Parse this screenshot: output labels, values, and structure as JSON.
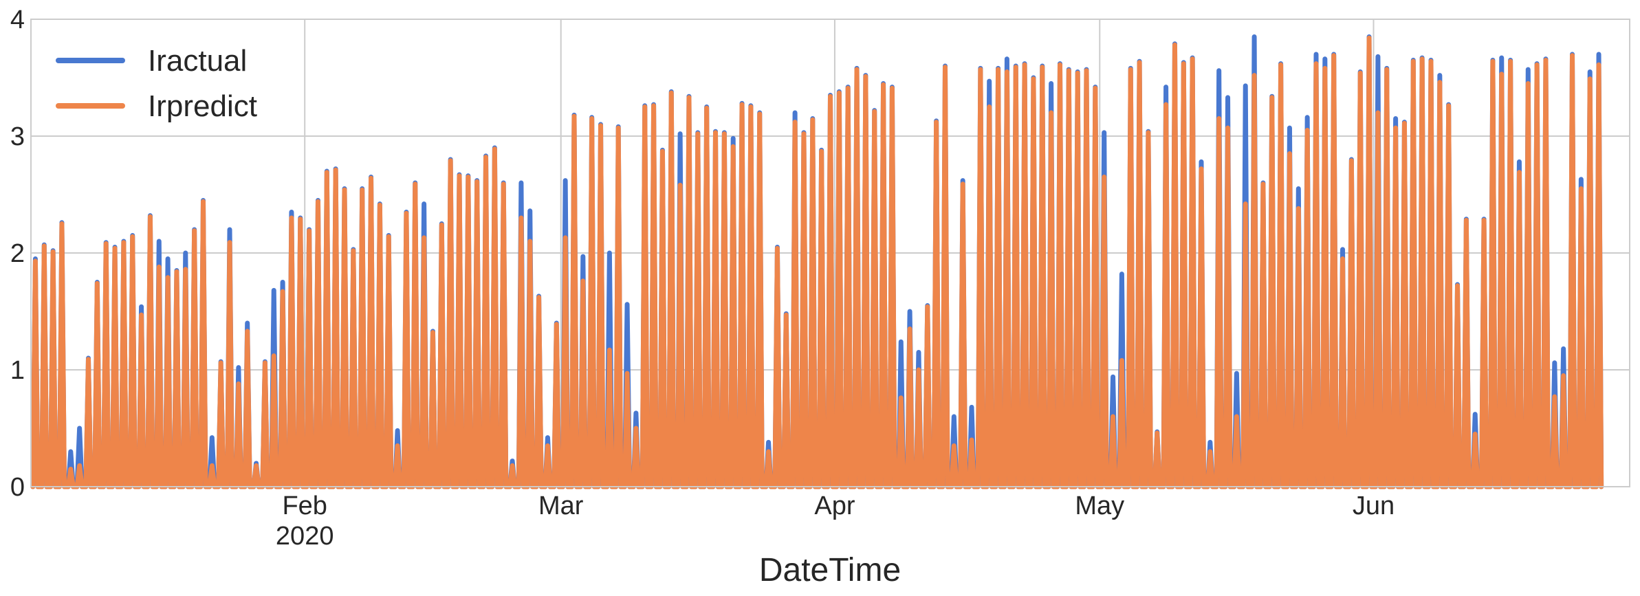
{
  "chart_data": {
    "type": "line",
    "title": "",
    "xlabel": "DateTime",
    "ylabel": "",
    "x_range": [
      "2020-01-01",
      "2020-06-30"
    ],
    "ylim": [
      0,
      4
    ],
    "y_ticks": [
      0,
      1,
      2,
      3,
      4
    ],
    "x_ticks": [
      {
        "date": "2020-02-01",
        "label": "Feb",
        "sublabel": "2020"
      },
      {
        "date": "2020-03-01",
        "label": "Mar",
        "sublabel": ""
      },
      {
        "date": "2020-04-01",
        "label": "Apr",
        "sublabel": ""
      },
      {
        "date": "2020-05-01",
        "label": "May",
        "sublabel": ""
      },
      {
        "date": "2020-06-01",
        "label": "Jun",
        "sublabel": ""
      }
    ],
    "grid": true,
    "legend_position": "top-left",
    "series": [
      {
        "name": "Iractual",
        "color": "#4878d0",
        "daily_peaks": [
          1.95,
          2.07,
          2.02,
          2.26,
          0.3,
          0.5,
          1.1,
          1.75,
          2.09,
          2.05,
          2.1,
          2.15,
          1.54,
          2.32,
          2.1,
          1.95,
          1.85,
          2.0,
          2.2,
          2.45,
          0.42,
          1.07,
          2.2,
          1.02,
          1.4,
          0.2,
          1.07,
          1.68,
          1.75,
          2.35,
          2.3,
          2.2,
          2.45,
          2.7,
          2.72,
          2.55,
          2.03,
          2.55,
          2.65,
          2.42,
          2.15,
          0.48,
          2.35,
          2.6,
          2.42,
          1.33,
          2.25,
          2.8,
          2.67,
          2.66,
          2.62,
          2.83,
          2.9,
          2.6,
          0.22,
          2.6,
          2.36,
          1.63,
          0.42,
          1.4,
          2.62,
          3.18,
          1.97,
          3.16,
          3.1,
          2.0,
          3.08,
          1.56,
          0.63,
          3.26,
          3.27,
          2.88,
          3.38,
          3.02,
          3.34,
          3.03,
          3.25,
          3.04,
          3.03,
          2.98,
          3.28,
          3.26,
          3.2,
          0.38,
          2.05,
          1.48,
          3.2,
          3.03,
          3.15,
          2.88,
          3.35,
          3.38,
          3.42,
          3.58,
          3.52,
          3.22,
          3.45,
          3.42,
          1.24,
          1.5,
          1.15,
          1.55,
          3.13,
          3.6,
          0.6,
          2.62,
          0.68,
          3.58,
          3.47,
          3.58,
          3.66,
          3.6,
          3.62,
          3.5,
          3.6,
          3.45,
          3.62,
          3.57,
          3.55,
          3.57,
          3.42,
          3.03,
          0.94,
          1.82,
          3.58,
          3.64,
          3.04,
          0.47,
          3.42,
          3.79,
          3.63,
          3.67,
          2.78,
          0.38,
          3.56,
          3.33,
          0.97,
          3.43,
          3.85,
          2.6,
          3.34,
          3.62,
          3.07,
          2.55,
          3.16,
          3.7,
          3.66,
          3.7,
          2.03,
          2.8,
          3.55,
          3.85,
          3.68,
          3.58,
          3.15,
          3.12,
          3.65,
          3.67,
          3.65,
          3.52,
          3.27,
          1.73,
          2.29,
          0.62,
          2.29,
          3.65,
          3.67,
          3.65,
          2.78,
          3.57,
          3.62,
          3.66,
          1.06,
          1.18,
          3.7,
          2.63,
          3.55,
          3.7
        ]
      },
      {
        "name": "Irpredict",
        "color": "#ee854a",
        "daily_peaks": [
          1.93,
          2.06,
          2.01,
          2.25,
          0.15,
          0.18,
          1.09,
          1.74,
          2.08,
          2.04,
          2.09,
          2.14,
          1.47,
          2.31,
          1.88,
          1.79,
          1.84,
          1.86,
          2.19,
          2.44,
          0.18,
          1.06,
          2.09,
          0.88,
          1.33,
          0.18,
          1.06,
          1.12,
          1.67,
          2.3,
          2.29,
          2.19,
          2.44,
          2.69,
          2.71,
          2.54,
          2.02,
          2.54,
          2.64,
          2.41,
          2.14,
          0.35,
          2.34,
          2.59,
          2.13,
          1.32,
          2.24,
          2.79,
          2.66,
          2.65,
          2.61,
          2.82,
          2.89,
          2.59,
          0.18,
          2.3,
          2.1,
          1.62,
          0.35,
          1.39,
          2.13,
          3.17,
          1.76,
          3.15,
          3.09,
          1.17,
          3.07,
          0.97,
          0.5,
          3.25,
          3.26,
          2.87,
          3.37,
          2.58,
          3.33,
          3.02,
          3.24,
          3.03,
          3.02,
          2.91,
          3.27,
          3.25,
          3.19,
          0.3,
          2.04,
          1.47,
          3.12,
          3.02,
          3.14,
          2.87,
          3.34,
          3.37,
          3.41,
          3.57,
          3.51,
          3.21,
          3.44,
          3.41,
          0.76,
          1.35,
          1.0,
          1.54,
          3.12,
          3.59,
          0.35,
          2.59,
          0.4,
          3.57,
          3.25,
          3.57,
          3.55,
          3.59,
          3.61,
          3.49,
          3.59,
          3.2,
          3.61,
          3.56,
          3.54,
          3.56,
          3.41,
          2.65,
          0.6,
          1.08,
          3.57,
          3.63,
          3.03,
          0.46,
          3.27,
          3.78,
          3.62,
          3.66,
          2.72,
          0.3,
          3.15,
          3.07,
          0.6,
          2.42,
          3.52,
          2.59,
          3.33,
          3.61,
          2.85,
          2.38,
          3.05,
          3.62,
          3.58,
          3.69,
          1.95,
          2.79,
          3.54,
          3.84,
          3.2,
          3.57,
          3.07,
          3.11,
          3.64,
          3.66,
          3.64,
          3.46,
          3.26,
          1.72,
          2.28,
          0.45,
          2.28,
          3.64,
          3.53,
          3.64,
          2.69,
          3.45,
          3.61,
          3.65,
          0.77,
          0.95,
          3.69,
          2.55,
          3.49,
          3.61
        ]
      }
    ]
  }
}
